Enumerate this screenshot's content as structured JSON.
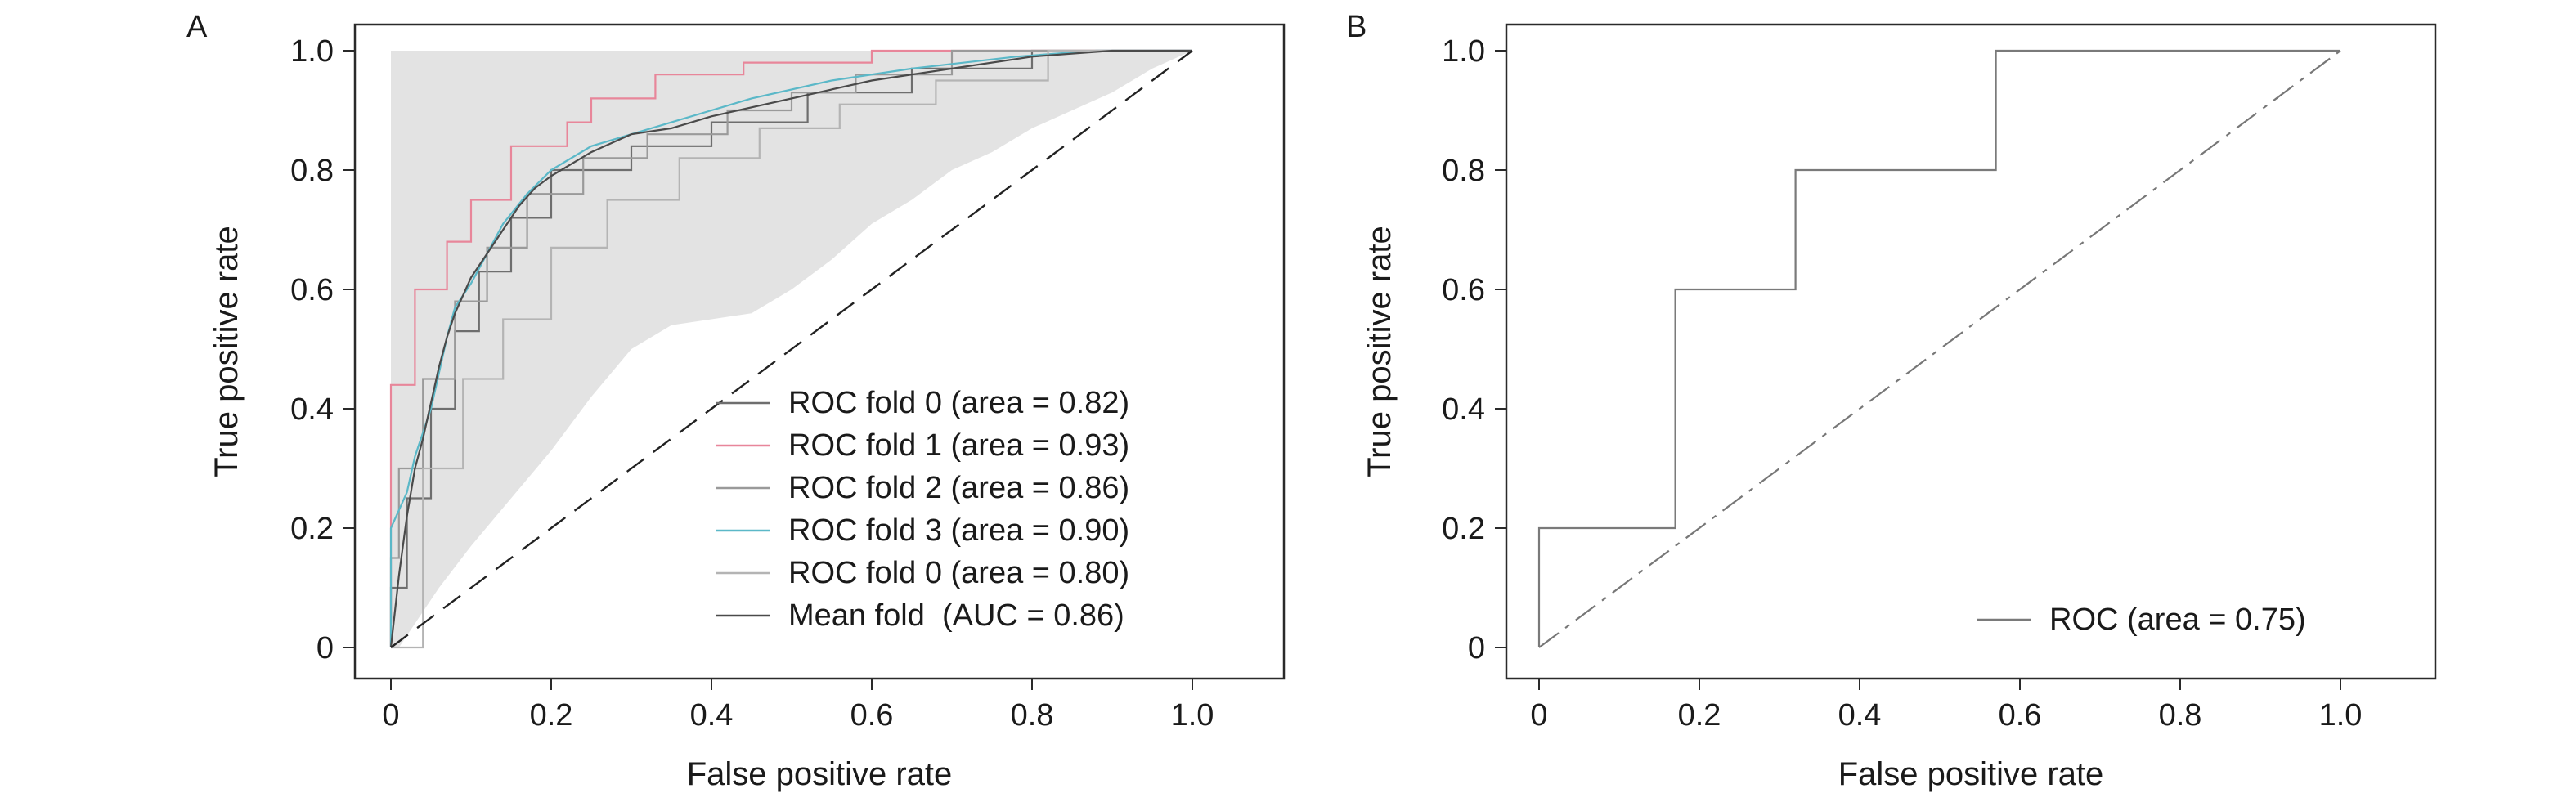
{
  "chart_data": [
    {
      "type": "line",
      "panel": "A",
      "xlabel": "False positive rate",
      "ylabel": "True positive rate",
      "xlim": [
        0,
        1
      ],
      "ylim": [
        0,
        1
      ],
      "xticks": [
        "0",
        "0.2",
        "0.4",
        "0.6",
        "0.8",
        "1.0"
      ],
      "yticks": [
        "0",
        "0.2",
        "0.4",
        "0.6",
        "0.8",
        "1.0"
      ],
      "legend_position": "lower-right",
      "grid": false,
      "std_band": {
        "x": [
          0,
          0.01,
          0.03,
          0.06,
          0.1,
          0.15,
          0.2,
          0.25,
          0.3,
          0.35,
          0.4,
          0.45,
          0.5,
          0.55,
          0.6,
          0.65,
          0.7,
          0.75,
          0.8,
          0.85,
          0.9,
          0.95,
          1.0
        ],
        "upper": [
          1,
          1,
          1,
          1,
          1,
          1,
          1,
          1,
          1,
          1,
          1,
          1,
          1,
          1,
          1,
          1,
          1,
          1,
          1,
          1,
          1,
          1,
          1
        ],
        "lower": [
          0,
          0.0,
          0.04,
          0.1,
          0.17,
          0.25,
          0.33,
          0.42,
          0.5,
          0.54,
          0.55,
          0.56,
          0.6,
          0.65,
          0.71,
          0.75,
          0.8,
          0.83,
          0.87,
          0.9,
          0.93,
          0.97,
          1.0
        ],
        "color": "#e3e3e3"
      },
      "series": [
        {
          "name": "ROC fold 0 (area = 0.82)",
          "color": "#6e6e6e",
          "x": [
            0,
            0.0,
            0.02,
            0.02,
            0.05,
            0.05,
            0.08,
            0.08,
            0.11,
            0.11,
            0.15,
            0.15,
            0.2,
            0.2,
            0.3,
            0.3,
            0.4,
            0.4,
            0.52,
            0.52,
            0.65,
            0.65,
            0.8,
            0.8,
            1.0
          ],
          "y": [
            0,
            0.1,
            0.1,
            0.25,
            0.25,
            0.4,
            0.4,
            0.53,
            0.53,
            0.63,
            0.63,
            0.72,
            0.72,
            0.8,
            0.8,
            0.84,
            0.84,
            0.88,
            0.88,
            0.93,
            0.93,
            0.97,
            0.97,
            1.0,
            1.0
          ]
        },
        {
          "name": "ROC fold 1 (area = 0.93)",
          "color": "#e8869a",
          "x": [
            0,
            0.0,
            0.0,
            0.03,
            0.03,
            0.07,
            0.07,
            0.1,
            0.1,
            0.15,
            0.15,
            0.22,
            0.22,
            0.25,
            0.25,
            0.33,
            0.33,
            0.44,
            0.44,
            0.6,
            0.6,
            1.0
          ],
          "y": [
            0,
            0.22,
            0.44,
            0.44,
            0.6,
            0.6,
            0.68,
            0.68,
            0.75,
            0.75,
            0.84,
            0.84,
            0.88,
            0.88,
            0.92,
            0.92,
            0.96,
            0.96,
            0.98,
            0.98,
            1.0,
            1.0
          ]
        },
        {
          "name": "ROC fold 2 (area = 0.86)",
          "color": "#9a9a9a",
          "x": [
            0,
            0.0,
            0.01,
            0.01,
            0.04,
            0.04,
            0.08,
            0.08,
            0.12,
            0.12,
            0.17,
            0.17,
            0.24,
            0.24,
            0.32,
            0.32,
            0.42,
            0.42,
            0.5,
            0.5,
            0.58,
            0.58,
            0.7,
            0.7,
            1.0
          ],
          "y": [
            0,
            0.15,
            0.15,
            0.3,
            0.3,
            0.45,
            0.45,
            0.58,
            0.58,
            0.67,
            0.67,
            0.76,
            0.76,
            0.82,
            0.82,
            0.86,
            0.86,
            0.9,
            0.9,
            0.93,
            0.93,
            0.96,
            0.96,
            1.0,
            1.0
          ]
        },
        {
          "name": "ROC fold 3 (area = 0.90)",
          "color": "#5bb8c8",
          "x": [
            0,
            0.0,
            0.0,
            0.01,
            0.02,
            0.03,
            0.05,
            0.06,
            0.07,
            0.08,
            0.1,
            0.12,
            0.14,
            0.17,
            0.2,
            0.25,
            0.3,
            0.35,
            0.4,
            0.45,
            0.55,
            0.65,
            0.78,
            0.88,
            1.0
          ],
          "y": [
            0,
            0.1,
            0.2,
            0.23,
            0.26,
            0.32,
            0.4,
            0.46,
            0.52,
            0.57,
            0.61,
            0.66,
            0.71,
            0.76,
            0.8,
            0.84,
            0.86,
            0.88,
            0.9,
            0.92,
            0.95,
            0.97,
            0.99,
            1.0,
            1.0
          ]
        },
        {
          "name": "ROC fold 0 (area = 0.80)",
          "color": "#b4b4b4",
          "x": [
            0,
            0.04,
            0.04,
            0.09,
            0.09,
            0.14,
            0.14,
            0.2,
            0.2,
            0.27,
            0.27,
            0.36,
            0.36,
            0.46,
            0.46,
            0.56,
            0.56,
            0.68,
            0.68,
            0.82,
            0.82,
            1.0
          ],
          "y": [
            0,
            0.0,
            0.3,
            0.3,
            0.45,
            0.45,
            0.55,
            0.55,
            0.67,
            0.67,
            0.75,
            0.75,
            0.82,
            0.82,
            0.87,
            0.87,
            0.91,
            0.91,
            0.95,
            0.95,
            1.0,
            1.0
          ]
        },
        {
          "name": "Mean fold  (AUC = 0.86)",
          "color": "#4a4a4a",
          "x": [
            0,
            0.01,
            0.02,
            0.03,
            0.04,
            0.05,
            0.06,
            0.07,
            0.08,
            0.09,
            0.1,
            0.12,
            0.14,
            0.16,
            0.18,
            0.2,
            0.25,
            0.3,
            0.35,
            0.4,
            0.5,
            0.6,
            0.7,
            0.8,
            0.9,
            1.0
          ],
          "y": [
            0,
            0.12,
            0.22,
            0.3,
            0.35,
            0.41,
            0.47,
            0.52,
            0.56,
            0.59,
            0.62,
            0.66,
            0.7,
            0.74,
            0.77,
            0.79,
            0.83,
            0.86,
            0.87,
            0.89,
            0.92,
            0.95,
            0.97,
            0.99,
            1.0,
            1.0
          ]
        },
        {
          "name": "",
          "color": "#222222",
          "dashed": true,
          "x": [
            0,
            1
          ],
          "y": [
            0,
            1
          ]
        }
      ]
    },
    {
      "type": "line",
      "panel": "B",
      "xlabel": "False positive rate",
      "ylabel": "True positive rate",
      "xlim": [
        0,
        1
      ],
      "ylim": [
        0,
        1
      ],
      "xticks": [
        "0",
        "0.2",
        "0.4",
        "0.6",
        "0.8",
        "1.0"
      ],
      "yticks": [
        "0",
        "0.2",
        "0.4",
        "0.6",
        "0.8",
        "1.0"
      ],
      "legend_position": "lower-right",
      "grid": false,
      "series": [
        {
          "name": "ROC (area = 0.75)",
          "color": "#7a7a7a",
          "x": [
            0,
            0,
            0.17,
            0.17,
            0.32,
            0.32,
            0.57,
            0.57,
            1.0
          ],
          "y": [
            0,
            0.2,
            0.2,
            0.6,
            0.6,
            0.8,
            0.8,
            1.0,
            1.0
          ]
        },
        {
          "name": "",
          "color": "#777777",
          "dashed": true,
          "x": [
            0,
            1
          ],
          "y": [
            0,
            1
          ]
        }
      ]
    }
  ]
}
